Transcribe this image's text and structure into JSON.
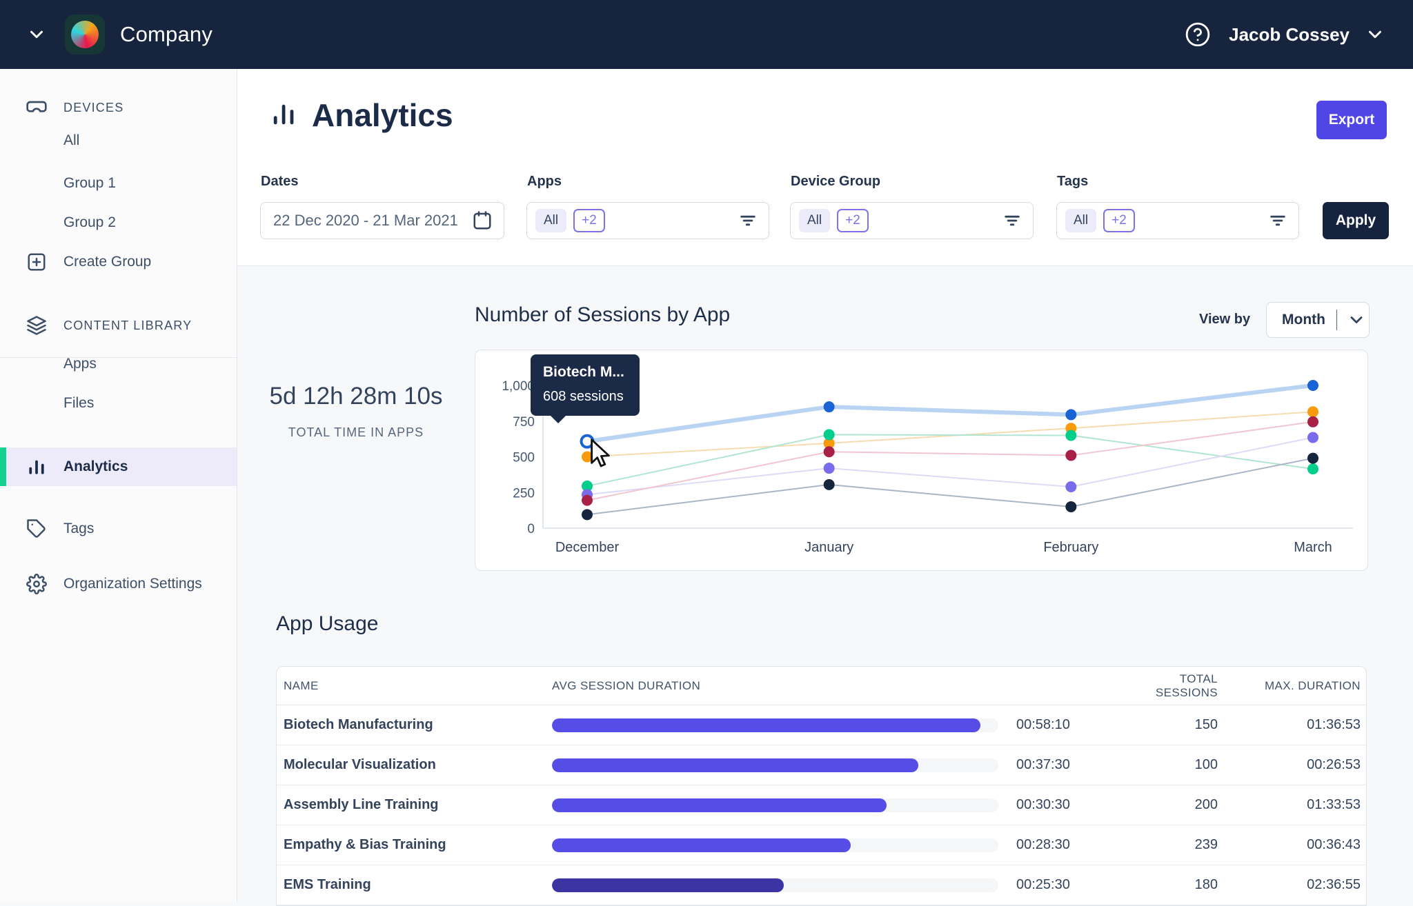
{
  "topbar": {
    "company": "Company",
    "user": "Jacob Cossey"
  },
  "sidebar": {
    "items": [
      {
        "label": "DEVICES"
      },
      {
        "label": "All"
      },
      {
        "label": "Group 1"
      },
      {
        "label": "Group 2"
      },
      {
        "label": "Create Group"
      },
      {
        "label": "CONTENT LIBRARY"
      },
      {
        "label": "Apps"
      },
      {
        "label": "Files"
      },
      {
        "label": "Analytics"
      },
      {
        "label": "Tags"
      },
      {
        "label": "Organization Settings"
      }
    ]
  },
  "header": {
    "title": "Analytics",
    "export_label": "Export"
  },
  "filters": {
    "dates": {
      "label": "Dates",
      "value": "22 Dec 2020 - 21 Mar 2021"
    },
    "apps": {
      "label": "Apps",
      "chip_all": "All",
      "chip_more": "+2"
    },
    "device_group": {
      "label": "Device Group",
      "chip_all": "All",
      "chip_more": "+2"
    },
    "tags": {
      "label": "Tags",
      "chip_all": "All",
      "chip_more": "+2"
    },
    "apply_label": "Apply"
  },
  "sessions": {
    "title": "Number of Sessions by App",
    "view_by_label": "View by",
    "view_by_value": "Month",
    "total_time": "5d 12h 28m 10s",
    "total_time_label": "TOTAL TIME IN APPS",
    "tooltip": {
      "title": "Biotech M...",
      "value": "608 sessions"
    }
  },
  "chart_data": {
    "type": "line",
    "title": "Number of Sessions by App",
    "x": [
      "December",
      "January",
      "February",
      "March"
    ],
    "ylim": [
      0,
      1000
    ],
    "yticks": [
      0,
      250,
      500,
      750,
      1000
    ],
    "ytick_labels": [
      "0",
      "250",
      "500",
      "750",
      "1,000"
    ],
    "grid": false,
    "legend": "none",
    "series": [
      {
        "name": "Biotech Manufacturing",
        "dot_color": "#1A63D4",
        "line_color": "#B9D3F3",
        "line_width": 6,
        "values": [
          608,
          850,
          795,
          1000
        ],
        "highlighted_point": 0
      },
      {
        "name": "series-orange",
        "dot_color": "#F79A0B",
        "line_color": "#F6DCAE",
        "line_width": 2,
        "values": [
          500,
          595,
          700,
          815
        ]
      },
      {
        "name": "series-green",
        "dot_color": "#00CE8C",
        "line_color": "#B2E5D0",
        "line_width": 2,
        "values": [
          295,
          655,
          650,
          415
        ]
      },
      {
        "name": "series-purple",
        "dot_color": "#7A6BEB",
        "line_color": "#DEDAF7",
        "line_width": 2,
        "values": [
          235,
          420,
          290,
          635
        ]
      },
      {
        "name": "series-crimson",
        "dot_color": "#A82045",
        "line_color": "#F2C6CF",
        "line_width": 2,
        "values": [
          195,
          535,
          510,
          745
        ]
      },
      {
        "name": "series-navy",
        "dot_color": "#16243E",
        "line_color": "#A9B6C5",
        "line_width": 2,
        "values": [
          95,
          305,
          150,
          490
        ]
      }
    ]
  },
  "app_usage": {
    "title": "App Usage",
    "columns": [
      "NAME",
      "AVG SESSION DURATION",
      "TOTAL SESSIONS",
      "MAX. DURATION"
    ],
    "rows": [
      {
        "name": "Biotech Manufacturing",
        "avg": "00:58:10",
        "bar_pct": 96,
        "bar_color": "#564CE6",
        "sessions": "150",
        "max": "01:36:53"
      },
      {
        "name": "Molecular Visualization",
        "avg": "00:37:30",
        "bar_pct": 82,
        "bar_color": "#564CE6",
        "sessions": "100",
        "max": "00:26:53"
      },
      {
        "name": "Assembly Line Training",
        "avg": "00:30:30",
        "bar_pct": 75,
        "bar_color": "#564CE6",
        "sessions": "200",
        "max": "01:33:53"
      },
      {
        "name": "Empathy & Bias Training",
        "avg": "00:28:30",
        "bar_pct": 67,
        "bar_color": "#564CE6",
        "sessions": "239",
        "max": "00:36:43"
      },
      {
        "name": "EMS Training",
        "avg": "00:25:30",
        "bar_pct": 52,
        "bar_color": "#3D34A4",
        "sessions": "180",
        "max": "02:36:55"
      }
    ]
  },
  "colors": {
    "topbar_bg": "#16243E",
    "accent_green": "#12D18E",
    "indigo": "#4F46E5",
    "active_item_bg": "#EDEBFA",
    "chip_purple": "#7B72E9"
  }
}
